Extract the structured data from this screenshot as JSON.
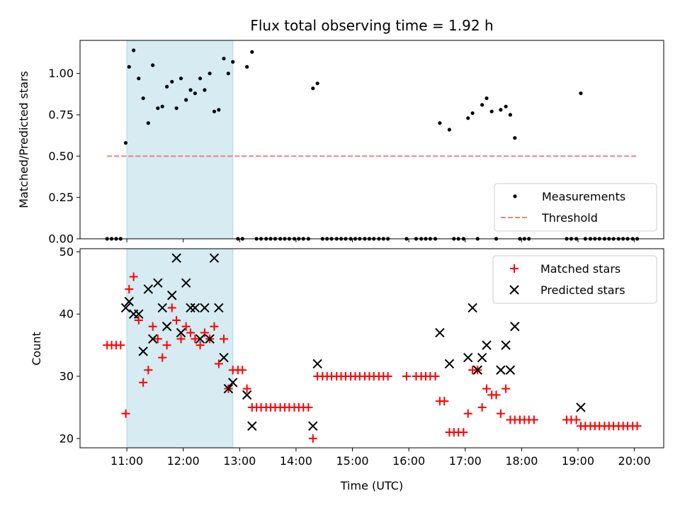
{
  "chart_data": {
    "title": "Flux total observing time = 1.92 h",
    "xlabel": "Time (UTC)",
    "x_ticks": [
      "11:00",
      "12:00",
      "13:00",
      "14:00",
      "15:00",
      "16:00",
      "17:00",
      "18:00",
      "19:00",
      "20:00"
    ],
    "x_tick_hours": [
      11,
      12,
      13,
      14,
      15,
      16,
      17,
      18,
      19,
      20
    ],
    "xlim_hours": [
      10.17,
      20.52
    ],
    "shaded_interval_hours": [
      11.0,
      12.88
    ],
    "panels": [
      {
        "type": "scatter",
        "ylabel": "Matched/Predicted stars",
        "ylim": [
          0,
          1.2
        ],
        "yticks": [
          "0.00",
          "0.25",
          "0.50",
          "0.75",
          "1.00"
        ],
        "ytick_values": [
          0,
          0.25,
          0.5,
          0.75,
          1.0
        ],
        "legend_position": "lower-right",
        "series": [
          {
            "name": "Measurements",
            "color": "#000000",
            "marker": "dot",
            "x": [
              10.65,
              10.73,
              10.81,
              10.89,
              10.98,
              11.04,
              11.12,
              11.21,
              11.29,
              11.38,
              11.46,
              11.55,
              11.63,
              11.71,
              11.8,
              11.88,
              11.96,
              12.05,
              12.13,
              12.21,
              12.3,
              12.38,
              12.47,
              12.55,
              12.63,
              12.72,
              12.8,
              12.88,
              12.97,
              13.05,
              13.13,
              13.22,
              13.3,
              13.38,
              13.47,
              13.55,
              13.63,
              13.72,
              13.8,
              13.88,
              13.97,
              14.05,
              14.13,
              14.22,
              14.3,
              14.38,
              14.47,
              14.55,
              14.63,
              14.72,
              14.8,
              14.88,
              14.97,
              15.05,
              15.13,
              15.22,
              15.3,
              15.38,
              15.47,
              15.55,
              15.63,
              15.96,
              16.13,
              16.22,
              16.3,
              16.38,
              16.47,
              16.55,
              16.72,
              16.8,
              16.88,
              16.97,
              17.05,
              17.13,
              17.22,
              17.3,
              17.38,
              17.47,
              17.55,
              17.63,
              17.72,
              17.8,
              17.88,
              17.97,
              18.05,
              18.13,
              18.8,
              18.88,
              18.97,
              19.05,
              19.13,
              19.22,
              19.3,
              19.38,
              19.47,
              19.55,
              19.63,
              19.72,
              19.8,
              19.88,
              19.97,
              20.05
            ],
            "y": [
              0,
              0,
              0,
              0,
              0.58,
              1.04,
              1.14,
              0.97,
              0.85,
              0.7,
              1.05,
              0.79,
              0.8,
              0.92,
              0.95,
              0.79,
              0.97,
              0.84,
              0.9,
              0.88,
              0.97,
              0.9,
              1.0,
              0.77,
              0.78,
              1.09,
              1.0,
              1.07,
              0,
              0,
              1.04,
              1.13,
              0,
              0,
              0,
              0,
              0,
              0,
              0,
              0,
              0,
              0,
              0,
              0,
              0.91,
              0.94,
              0,
              0,
              0,
              0,
              0,
              0,
              0,
              0,
              0,
              0,
              0,
              0,
              0,
              0,
              0,
              0,
              0,
              0,
              0,
              0,
              0,
              0.7,
              0.66,
              0,
              0,
              0,
              0.73,
              0.76,
              0,
              0.81,
              0.85,
              0.77,
              0,
              0.78,
              0.8,
              0.75,
              0.61,
              0,
              0,
              0,
              0,
              0,
              0,
              0.88,
              0,
              0,
              0,
              0,
              0,
              0,
              0,
              0,
              0,
              0,
              0,
              0
            ]
          },
          {
            "name": "Threshold",
            "color": "#f08080",
            "style": "dashed",
            "x": [
              10.65,
              20.05
            ],
            "y": [
              0.5,
              0.5
            ]
          }
        ]
      },
      {
        "type": "scatter",
        "ylabel": "Count",
        "ylim": [
          18.5,
          50.5
        ],
        "yticks": [
          "20",
          "30",
          "40",
          "50"
        ],
        "ytick_values": [
          20,
          30,
          40,
          50
        ],
        "legend_position": "upper-right",
        "series": [
          {
            "name": "Matched stars",
            "color": "#ff0000",
            "marker": "plus",
            "x": [
              10.65,
              10.73,
              10.81,
              10.89,
              10.98,
              11.04,
              11.12,
              11.21,
              11.29,
              11.38,
              11.46,
              11.55,
              11.63,
              11.71,
              11.8,
              11.88,
              11.96,
              12.05,
              12.13,
              12.21,
              12.3,
              12.38,
              12.47,
              12.55,
              12.63,
              12.72,
              12.8,
              12.88,
              12.97,
              13.05,
              13.13,
              13.22,
              13.3,
              13.38,
              13.47,
              13.55,
              13.63,
              13.72,
              13.8,
              13.88,
              13.97,
              14.05,
              14.13,
              14.22,
              14.3,
              14.38,
              14.47,
              14.55,
              14.63,
              14.72,
              14.8,
              14.88,
              14.97,
              15.05,
              15.13,
              15.22,
              15.3,
              15.38,
              15.47,
              15.55,
              15.63,
              15.96,
              16.13,
              16.22,
              16.3,
              16.38,
              16.47,
              16.55,
              16.63,
              16.72,
              16.8,
              16.88,
              16.97,
              17.05,
              17.13,
              17.22,
              17.3,
              17.38,
              17.47,
              17.55,
              17.63,
              17.72,
              17.8,
              17.88,
              17.97,
              18.05,
              18.13,
              18.22,
              18.8,
              18.88,
              18.97,
              19.05,
              19.13,
              19.22,
              19.3,
              19.38,
              19.47,
              19.55,
              19.63,
              19.72,
              19.8,
              19.88,
              19.97,
              20.05
            ],
            "y": [
              35,
              35,
              35,
              35,
              24,
              44,
              46,
              39,
              29,
              31,
              38,
              36,
              33,
              35,
              41,
              39,
              36,
              38,
              37,
              36,
              35,
              37,
              36,
              38,
              32,
              36,
              28,
              31,
              31,
              31,
              28,
              25,
              25,
              25,
              25,
              25,
              25,
              25,
              25,
              25,
              25,
              25,
              25,
              25,
              20,
              30,
              30,
              30,
              30,
              30,
              30,
              30,
              30,
              30,
              30,
              30,
              30,
              30,
              30,
              30,
              30,
              30,
              30,
              30,
              30,
              30,
              30,
              26,
              26,
              21,
              21,
              21,
              21,
              24,
              31,
              31,
              25,
              28,
              27,
              27,
              24,
              28,
              23,
              23,
              23,
              23,
              23,
              23,
              23,
              23,
              23,
              22,
              22,
              22,
              22,
              22,
              22,
              22,
              22,
              22,
              22,
              22,
              22,
              22
            ]
          },
          {
            "name": "Predicted stars",
            "color": "#000000",
            "marker": "x",
            "x": [
              10.98,
              11.04,
              11.12,
              11.21,
              11.29,
              11.38,
              11.46,
              11.55,
              11.63,
              11.71,
              11.8,
              11.88,
              11.96,
              12.05,
              12.13,
              12.21,
              12.3,
              12.38,
              12.47,
              12.55,
              12.63,
              12.72,
              12.8,
              12.88,
              13.13,
              13.22,
              14.3,
              14.38,
              16.55,
              16.72,
              17.05,
              17.13,
              17.22,
              17.3,
              17.38,
              17.63,
              17.72,
              17.8,
              17.88,
              19.05
            ],
            "y": [
              41,
              42,
              40,
              40,
              34,
              44,
              36,
              45,
              41,
              38,
              43,
              49,
              37,
              45,
              41,
              41,
              36,
              41,
              36,
              49,
              41,
              33,
              28,
              29,
              27,
              22,
              22,
              32,
              37,
              32,
              33,
              41,
              31,
              33,
              35,
              31,
              35,
              31,
              38,
              25
            ]
          }
        ]
      }
    ]
  }
}
